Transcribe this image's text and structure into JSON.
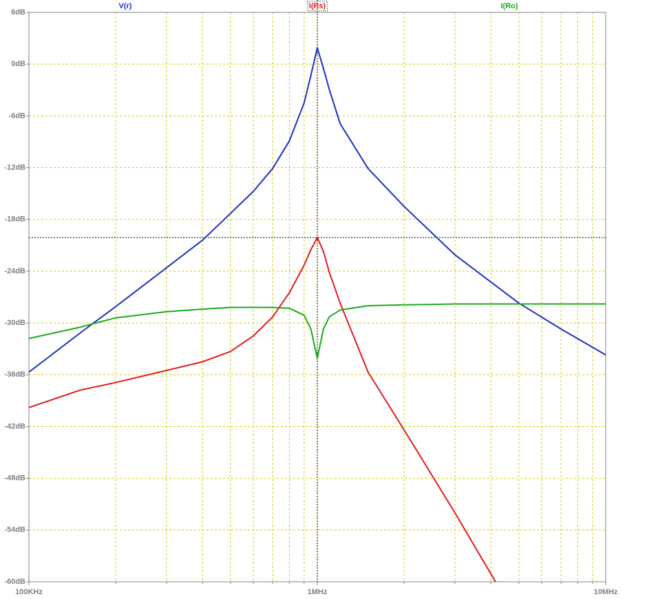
{
  "chart_data": {
    "type": "line",
    "xscale": "log",
    "xlim": [
      100000,
      10000000
    ],
    "xticks": [
      {
        "value": 100000,
        "label": "100KHz"
      },
      {
        "value": 1000000,
        "label": "1MHz"
      },
      {
        "value": 10000000,
        "label": "10MHz"
      }
    ],
    "xminorticks": [
      200000,
      300000,
      400000,
      500000,
      600000,
      700000,
      800000,
      900000,
      2000000,
      3000000,
      4000000,
      5000000,
      6000000,
      7000000,
      8000000,
      9000000
    ],
    "ylim": [
      -60,
      6
    ],
    "yticks": [
      {
        "value": 6,
        "label": "6dB"
      },
      {
        "value": 0,
        "label": "0dB"
      },
      {
        "value": -6,
        "label": "-6dB"
      },
      {
        "value": -12,
        "label": "-12dB"
      },
      {
        "value": -18,
        "label": "-18dB"
      },
      {
        "value": -24,
        "label": "-24dB"
      },
      {
        "value": -30,
        "label": "-30dB"
      },
      {
        "value": -36,
        "label": "-36dB"
      },
      {
        "value": -42,
        "label": "-42dB"
      },
      {
        "value": -48,
        "label": "-48dB"
      },
      {
        "value": -54,
        "label": "-54dB"
      },
      {
        "value": -60,
        "label": "-60dB"
      }
    ],
    "grid": true,
    "cursor": {
      "x": 1000000,
      "y": -20.1
    },
    "series": [
      {
        "name": "V(r)",
        "color": "#1a2fc4",
        "x": [
          100000,
          150000,
          200000,
          300000,
          400000,
          500000,
          600000,
          700000,
          800000,
          900000,
          950000,
          1000000,
          1050000,
          1100000,
          1200000,
          1500000,
          2000000,
          3000000,
          5000000,
          7000000,
          10000000
        ],
        "values": [
          -35.7,
          -31.2,
          -28.1,
          -23.6,
          -20.4,
          -17.3,
          -14.75,
          -12.1,
          -8.9,
          -4.5,
          -1.3,
          1.9,
          -0.5,
          -2.9,
          -6.9,
          -12.1,
          -16.5,
          -22.1,
          -27.7,
          -30.7,
          -33.7
        ]
      },
      {
        "name": "I(Rs)",
        "color": "#e01a1a",
        "x": [
          100000,
          150000,
          200000,
          300000,
          400000,
          500000,
          600000,
          700000,
          800000,
          900000,
          950000,
          1000000,
          1050000,
          1100000,
          1200000,
          1500000,
          2000000,
          3000000,
          4150000
        ],
        "values": [
          -39.8,
          -37.8,
          -36.9,
          -35.5,
          -34.5,
          -33.3,
          -31.5,
          -29.3,
          -26.5,
          -23.3,
          -21.5,
          -20.1,
          -21.7,
          -24.1,
          -27.7,
          -35.7,
          -42.4,
          -52.0,
          -60
        ]
      },
      {
        "name": "I(Ro)",
        "color": "#1aaa1a",
        "x": [
          100000,
          150000,
          200000,
          300000,
          400000,
          500000,
          600000,
          700000,
          800000,
          900000,
          950000,
          1000000,
          1050000,
          1100000,
          1200000,
          1500000,
          2000000,
          3000000,
          5000000,
          10000000
        ],
        "values": [
          -31.8,
          -30.5,
          -29.4,
          -28.7,
          -28.4,
          -28.2,
          -28.2,
          -28.2,
          -28.3,
          -29.1,
          -30.7,
          -34.1,
          -30.7,
          -29.3,
          -28.5,
          -28.0,
          -27.9,
          -27.8,
          -27.8,
          -27.8
        ]
      }
    ]
  }
}
